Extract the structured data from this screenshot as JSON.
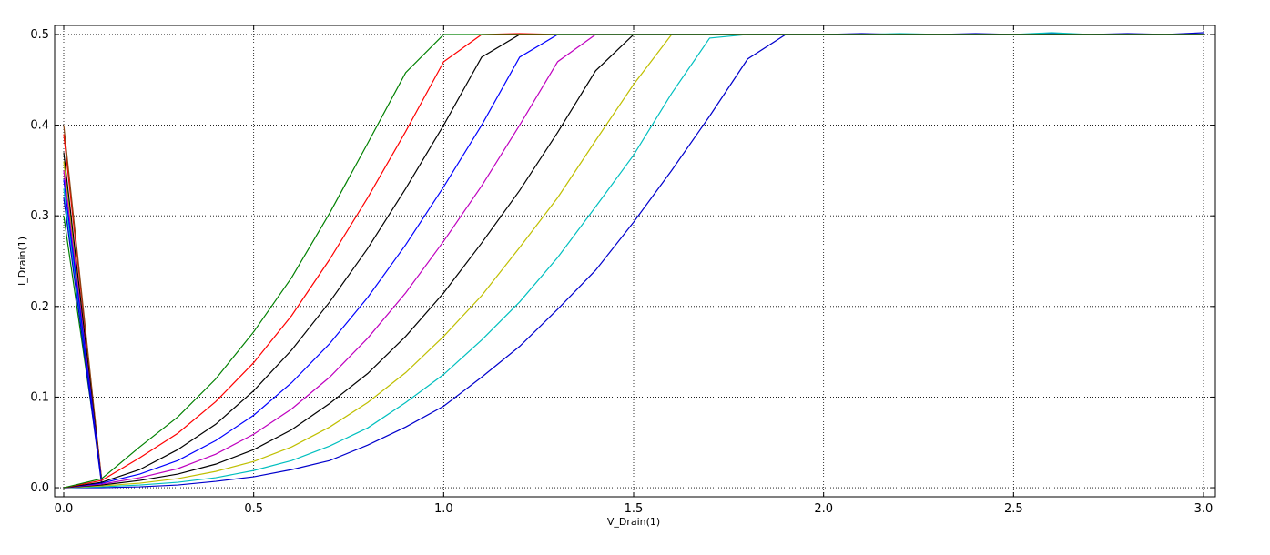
{
  "chart_data": {
    "type": "line",
    "xlabel": "V_Drain(1)",
    "ylabel": "I_Drain(1)",
    "xlim": [
      0.0,
      3.0
    ],
    "ylim": [
      -0.01,
      0.51
    ],
    "xticks": [
      "0.0",
      "0.5",
      "1.0",
      "1.5",
      "2.0",
      "2.5",
      "3.0"
    ],
    "yticks": [
      "0.0",
      "0.1",
      "0.2",
      "0.3",
      "0.4",
      "0.5"
    ],
    "grid": true,
    "x": [
      0.0,
      0.1,
      0.2,
      0.3,
      0.4,
      0.5,
      0.6,
      0.7,
      0.8,
      0.9,
      1.0,
      1.1,
      1.2,
      1.3,
      1.4,
      1.5,
      1.6,
      1.7,
      1.8,
      1.9,
      2.0,
      2.1,
      2.2,
      2.3,
      2.4,
      2.5,
      2.6,
      2.7,
      2.8,
      2.9,
      3.0
    ],
    "series": [
      {
        "color": "#0000cc",
        "values": [
          0.0,
          0.0,
          0.001,
          0.003,
          0.007,
          0.012,
          0.02,
          0.03,
          0.047,
          0.067,
          0.09,
          0.122,
          0.156,
          0.197,
          0.24,
          0.293,
          0.35,
          0.41,
          0.473,
          0.5,
          0.5,
          0.501,
          0.5,
          0.5,
          0.501,
          0.5,
          0.501,
          0.5,
          0.501,
          0.5,
          0.502
        ]
      },
      {
        "color": "#00bfbf",
        "values": [
          0.0,
          0.001,
          0.003,
          0.006,
          0.011,
          0.019,
          0.03,
          0.046,
          0.066,
          0.094,
          0.125,
          0.163,
          0.205,
          0.254,
          0.31,
          0.367,
          0.435,
          0.496,
          0.5,
          0.5,
          0.5,
          0.5,
          0.501,
          0.5,
          0.5,
          0.5,
          0.502,
          0.5,
          0.5,
          0.5,
          0.5
        ]
      },
      {
        "color": "#bfbf00",
        "values": [
          0.0,
          0.002,
          0.005,
          0.01,
          0.018,
          0.029,
          0.045,
          0.067,
          0.094,
          0.127,
          0.167,
          0.212,
          0.265,
          0.32,
          0.383,
          0.445,
          0.5,
          0.5,
          0.5,
          0.5,
          0.5,
          0.5,
          0.5,
          0.5,
          0.5,
          0.5,
          0.5,
          0.5,
          0.5,
          0.5,
          0.5
        ]
      },
      {
        "color": "#000000",
        "values": [
          0.0,
          0.003,
          0.008,
          0.015,
          0.026,
          0.042,
          0.064,
          0.093,
          0.126,
          0.167,
          0.215,
          0.27,
          0.328,
          0.392,
          0.46,
          0.5,
          0.5,
          0.5,
          0.5,
          0.5,
          0.5,
          0.5,
          0.5,
          0.5,
          0.5,
          0.5,
          0.5,
          0.5,
          0.5,
          0.5,
          0.5
        ]
      },
      {
        "color": "#bf00bf",
        "values": [
          0.0,
          0.004,
          0.011,
          0.021,
          0.037,
          0.059,
          0.087,
          0.122,
          0.165,
          0.215,
          0.272,
          0.333,
          0.4,
          0.47,
          0.5,
          0.5,
          0.5,
          0.5,
          0.5,
          0.5,
          0.5,
          0.5,
          0.5,
          0.5,
          0.5,
          0.5,
          0.5,
          0.5,
          0.5,
          0.5,
          0.5
        ]
      },
      {
        "color": "#0000ff",
        "values": [
          0.0,
          0.005,
          0.015,
          0.03,
          0.052,
          0.08,
          0.116,
          0.159,
          0.21,
          0.268,
          0.332,
          0.4,
          0.475,
          0.5,
          0.5,
          0.5,
          0.5,
          0.5,
          0.5,
          0.5,
          0.5,
          0.5,
          0.5,
          0.5,
          0.5,
          0.5,
          0.5,
          0.5,
          0.5,
          0.5,
          0.5
        ]
      },
      {
        "color": "#000000",
        "values": [
          0.0,
          0.006,
          0.02,
          0.042,
          0.07,
          0.107,
          0.152,
          0.205,
          0.264,
          0.33,
          0.4,
          0.475,
          0.5,
          0.5,
          0.5,
          0.5,
          0.5,
          0.5,
          0.5,
          0.5,
          0.5,
          0.5,
          0.5,
          0.5,
          0.5,
          0.5,
          0.5,
          0.5,
          0.5,
          0.5,
          0.5
        ]
      },
      {
        "color": "#ff0000",
        "values": [
          0.0,
          0.008,
          0.033,
          0.06,
          0.095,
          0.138,
          0.19,
          0.252,
          0.32,
          0.393,
          0.47,
          0.5,
          0.501,
          0.5,
          0.5,
          0.5,
          0.5,
          0.5,
          0.5,
          0.5,
          0.5,
          0.5,
          0.5,
          0.5,
          0.5,
          0.5,
          0.5,
          0.5,
          0.5,
          0.5,
          0.5
        ]
      },
      {
        "color": "#008000",
        "values": [
          0.0,
          0.01,
          0.045,
          0.078,
          0.12,
          0.172,
          0.232,
          0.303,
          0.38,
          0.458,
          0.5,
          0.5,
          0.5,
          0.5,
          0.5,
          0.5,
          0.5,
          0.5,
          0.5,
          0.5,
          0.5,
          0.5,
          0.5,
          0.5,
          0.5,
          0.5,
          0.5,
          0.5,
          0.5,
          0.5,
          0.5
        ]
      }
    ],
    "spikes": [
      {
        "color": "#008000",
        "values": [
          0.3,
          0.01
        ]
      },
      {
        "color": "#00bfbf",
        "values": [
          0.33,
          0.005
        ]
      },
      {
        "color": "#bfbf00",
        "values": [
          0.36,
          0.005
        ]
      },
      {
        "color": "#ff0000",
        "values": [
          0.39,
          0.008
        ]
      },
      {
        "color": "#8b4513",
        "values": [
          0.4,
          0.007
        ]
      },
      {
        "color": "#000000",
        "values": [
          0.37,
          0.005
        ]
      },
      {
        "color": "#bf00bf",
        "values": [
          0.35,
          0.004
        ]
      },
      {
        "color": "#0000ff",
        "values": [
          0.34,
          0.005
        ]
      },
      {
        "color": "#0000cc",
        "values": [
          0.32,
          0.003
        ]
      }
    ]
  }
}
